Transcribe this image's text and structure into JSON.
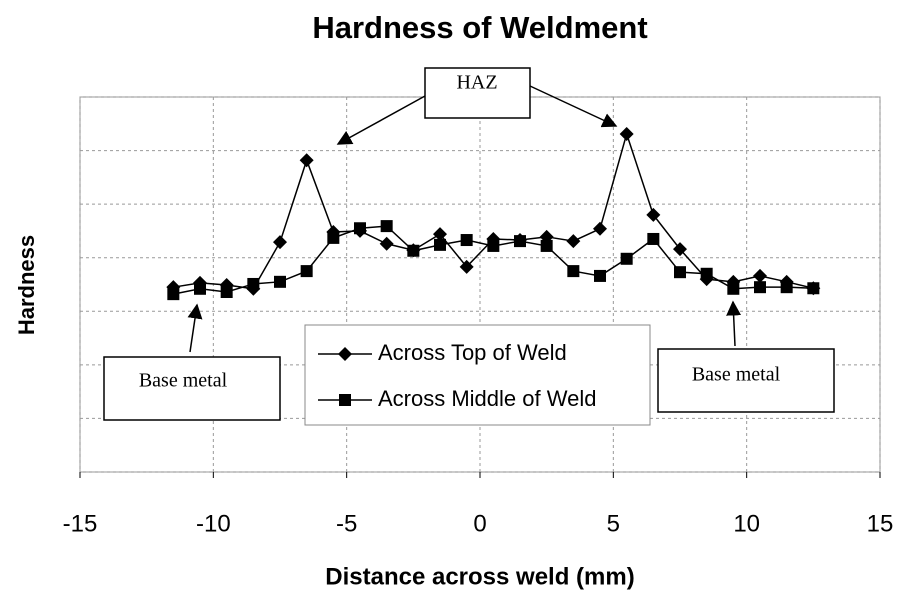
{
  "chart_data": {
    "type": "line",
    "title": "Hardness of Weldment",
    "xlabel": "Distance across weld (mm)",
    "ylabel": "Hardness",
    "x": [
      -11.5,
      -10.5,
      -9.5,
      -8.5,
      -7.5,
      -6.5,
      -5.5,
      -4.5,
      -3.5,
      -2.5,
      -1.5,
      -0.5,
      0.5,
      1.5,
      2.5,
      3.5,
      4.5,
      5.5,
      6.5,
      7.5,
      8.5,
      9.5,
      10.5,
      11.5,
      12.5
    ],
    "series": [
      {
        "name": "Across Top of Weld",
        "color": "#000000",
        "marker": "diamond",
        "values": [
          3.45,
          3.53,
          3.49,
          3.42,
          4.29,
          5.82,
          4.48,
          4.5,
          4.26,
          4.14,
          4.44,
          3.83,
          4.35,
          4.33,
          4.39,
          4.31,
          4.54,
          6.31,
          4.8,
          4.16,
          3.6,
          3.55,
          3.66,
          3.55,
          3.43
        ]
      },
      {
        "name": "Across Middle of Weld",
        "color": "#000000",
        "marker": "square",
        "values": [
          3.32,
          3.42,
          3.36,
          3.51,
          3.55,
          3.75,
          4.37,
          4.55,
          4.59,
          4.13,
          4.24,
          4.33,
          4.22,
          4.31,
          4.22,
          3.75,
          3.66,
          3.98,
          4.35,
          3.73,
          3.7,
          3.42,
          3.45,
          3.45,
          3.43
        ]
      }
    ],
    "xlim": [
      -15,
      15
    ],
    "xticks": [
      -15,
      -10,
      -5,
      0,
      5,
      10,
      15
    ],
    "ylim": [
      0,
      7
    ],
    "yticks": [
      0,
      1,
      2,
      3,
      4,
      5,
      6,
      7
    ],
    "ytick_labels": false,
    "grid": true,
    "annotations": [
      "HAZ",
      "Base metal",
      "Base metal"
    ]
  }
}
